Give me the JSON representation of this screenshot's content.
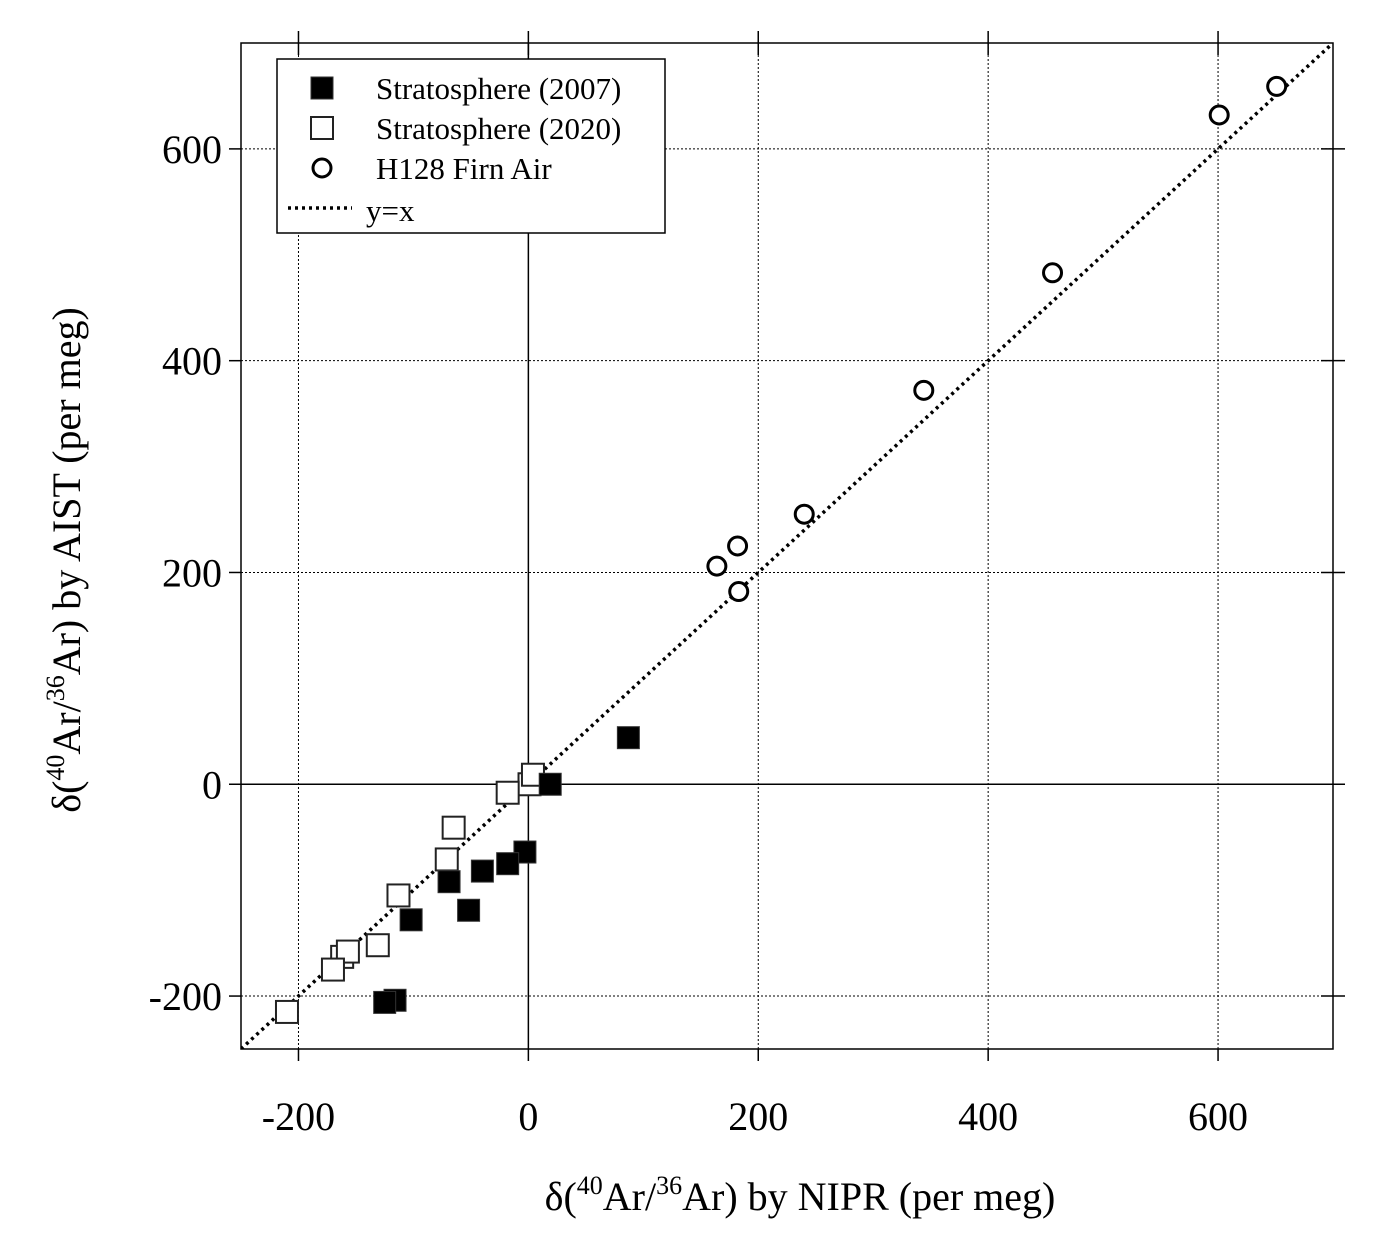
{
  "chart_data": {
    "type": "scatter",
    "xlabel_parts": {
      "prefix": "δ(",
      "sup1": "40",
      "mid": "Ar/",
      "sup2": "36",
      "suffix": "Ar) by NIPR (per meg)"
    },
    "ylabel_parts": {
      "prefix": "δ(",
      "sup1": "40",
      "mid": "Ar/",
      "sup2": "36",
      "suffix": "Ar) by AIST (per meg)"
    },
    "xlim": [
      -250,
      700
    ],
    "ylim": [
      -250,
      700
    ],
    "xticks": [
      -200,
      0,
      200,
      400,
      600
    ],
    "yticks": [
      -200,
      0,
      200,
      400,
      600
    ],
    "grid": true,
    "legend_position": "top-left",
    "series": [
      {
        "name": "Stratosphere (2007)",
        "marker": "filled-square",
        "points": [
          [
            87,
            44
          ],
          [
            19,
            0
          ],
          [
            -3,
            -64
          ],
          [
            -18,
            -75
          ],
          [
            -40,
            -82
          ],
          [
            -69,
            -92
          ],
          [
            -52,
            -119
          ],
          [
            -102,
            -128
          ],
          [
            -116,
            -204
          ],
          [
            -125,
            -206
          ]
        ]
      },
      {
        "name": "Stratosphere (2020)",
        "marker": "open-square",
        "points": [
          [
            1,
            0
          ],
          [
            4,
            9
          ],
          [
            -18,
            -8
          ],
          [
            -65,
            -41
          ],
          [
            -71,
            -71
          ],
          [
            -113,
            -105
          ],
          [
            -131,
            -152
          ],
          [
            -162,
            -163
          ],
          [
            -157,
            -158
          ],
          [
            -170,
            -175
          ],
          [
            -210,
            -215
          ]
        ]
      },
      {
        "name": "H128 Firn Air",
        "marker": "open-circle",
        "points": [
          [
            651,
            659
          ],
          [
            601,
            632
          ],
          [
            456,
            483
          ],
          [
            344,
            372
          ],
          [
            240,
            255
          ],
          [
            182,
            225
          ],
          [
            164,
            206
          ],
          [
            183,
            182
          ]
        ]
      },
      {
        "name": "y=x",
        "marker": "dotted-line",
        "points": [
          [
            -250,
            -250
          ],
          [
            700,
            700
          ]
        ]
      }
    ]
  }
}
